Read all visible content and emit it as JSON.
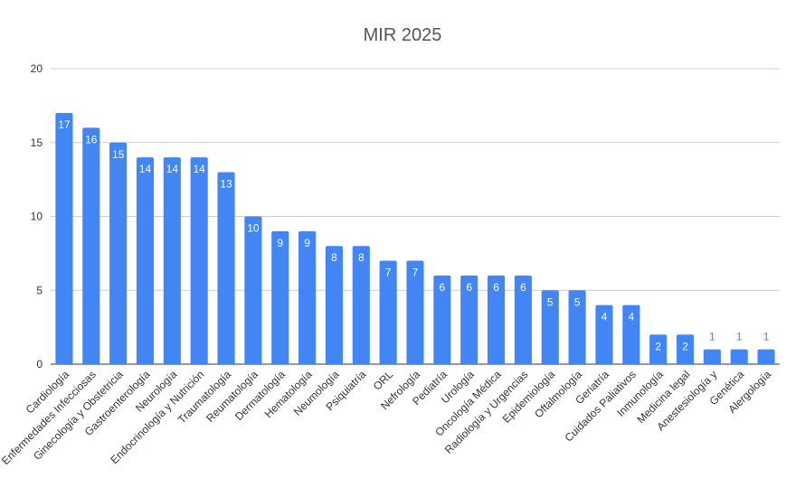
{
  "chart_data": {
    "type": "bar",
    "title": "MIR 2025",
    "xlabel": "",
    "ylabel": "",
    "ylim": [
      0,
      20
    ],
    "yticks": [
      0,
      5,
      10,
      15,
      20
    ],
    "grid": true,
    "legend": "none",
    "bar_color": "#4285f4",
    "categories": [
      "Cardiología",
      "Enfermedades Infecciosas",
      "Ginecología y Obstetricia",
      "Gastroenterología",
      "Neurología",
      "Endocrinología y Nutrición",
      "Traumatología",
      "Reumatología",
      "Dermatología",
      "Hematología",
      "Neumología",
      "Psiquiatría",
      "ORL",
      "Nefrología",
      "Pediatría",
      "Urología",
      "Oncología Médica",
      "Radiología y Urgencias",
      "Epidemiología",
      "Oftalmología",
      "Geriatría",
      "Cuidados Paliativos",
      "Inmunología",
      "Medicina legal",
      "Anestesiología y",
      "Genética",
      "Alergología"
    ],
    "values": [
      17,
      16,
      15,
      14,
      14,
      14,
      13,
      10,
      9,
      9,
      8,
      8,
      7,
      7,
      6,
      6,
      6,
      6,
      5,
      5,
      4,
      4,
      2,
      2,
      1,
      1,
      1
    ]
  }
}
